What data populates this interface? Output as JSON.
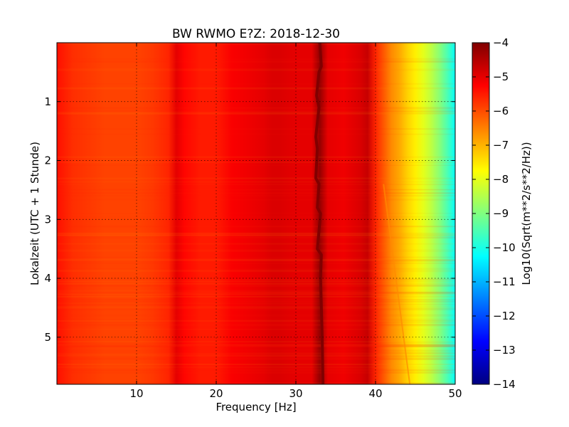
{
  "chart_data": {
    "type": "heatmap",
    "title": "BW RWMO E?Z: 2018-12-30",
    "xlabel": "Frequency [Hz]",
    "ylabel": "Lokalzeit (UTC + 1 Stunde)",
    "xlim": [
      0,
      50
    ],
    "ylim": [
      0,
      5.8
    ],
    "y_inverted": true,
    "x_ticks": [
      10,
      20,
      30,
      40,
      50
    ],
    "y_ticks": [
      1,
      2,
      3,
      4,
      5
    ],
    "grid": true,
    "colormap": "jet",
    "colorbar": {
      "label": "Log10(Sqrt(m**2/s**2/Hz))",
      "range": [
        -14,
        -4
      ],
      "ticks": [
        -4,
        -5,
        -6,
        -7,
        -8,
        -9,
        -10,
        -11,
        -12,
        -13,
        -14
      ]
    },
    "spectrum_profile": {
      "frequency_hz": [
        0,
        2,
        4,
        6,
        8,
        10,
        12,
        14,
        15,
        16,
        18,
        20,
        22,
        24,
        26,
        27,
        28,
        30,
        32,
        33,
        34,
        36,
        38,
        39,
        40,
        41,
        42,
        43,
        44,
        45,
        46,
        47,
        48,
        49,
        50
      ],
      "level": [
        -5.4,
        -5.7,
        -5.8,
        -5.9,
        -5.9,
        -5.9,
        -5.8,
        -5.6,
        -5.0,
        -5.3,
        -5.5,
        -5.5,
        -5.2,
        -5.1,
        -5.0,
        -4.9,
        -4.9,
        -5.0,
        -5.0,
        -4.2,
        -5.0,
        -5.1,
        -4.9,
        -4.7,
        -5.6,
        -6.1,
        -6.6,
        -6.9,
        -7.3,
        -7.6,
        -8.0,
        -8.4,
        -8.9,
        -9.5,
        -10.2
      ]
    },
    "narrow_line": {
      "description_free": true,
      "time_h": [
        0.0,
        0.4,
        0.5,
        0.9,
        1.1,
        1.6,
        1.8,
        2.3,
        2.4,
        2.8,
        2.9,
        3.2,
        3.5,
        3.6,
        4.0,
        5.0,
        5.8
      ],
      "frequency_hz": [
        33.0,
        33.2,
        32.9,
        32.6,
        32.9,
        32.5,
        32.7,
        32.5,
        32.9,
        32.7,
        33.1,
        32.9,
        32.7,
        33.2,
        33.1,
        33.3,
        33.4
      ],
      "level": -4.0
    },
    "drift_line": {
      "time_h": [
        2.4,
        5.8
      ],
      "frequency_hz": [
        41.0,
        44.3
      ],
      "level": -6.6
    }
  }
}
